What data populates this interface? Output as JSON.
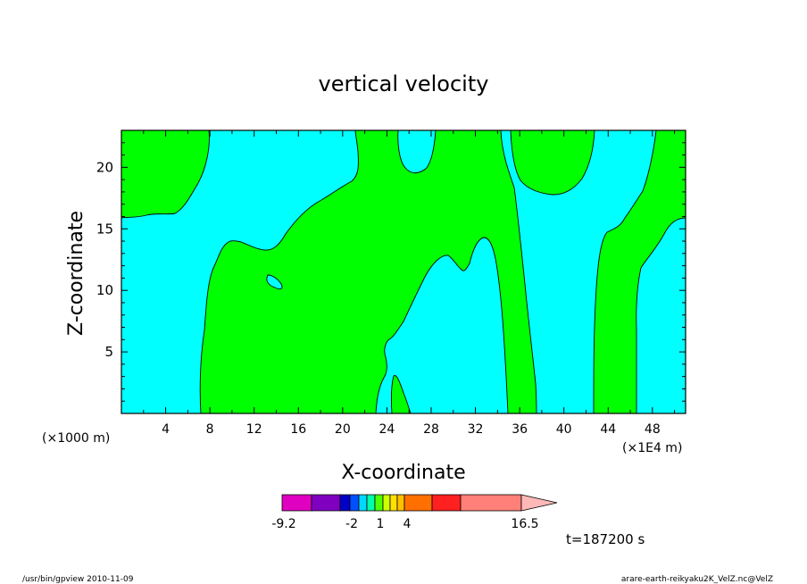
{
  "chart_data": {
    "type": "contour",
    "title": "vertical velocity",
    "xlabel": "X-coordinate",
    "ylabel": "Z-coordinate",
    "x_unit_label": "(×1000 m)",
    "x_unit_label_right": "(×1E4 m)",
    "xlim": [
      0,
      51
    ],
    "ylim": [
      0,
      23
    ],
    "x_ticks": [
      "4",
      "8",
      "12",
      "16",
      "20",
      "24",
      "28",
      "32",
      "36",
      "40",
      "44",
      "48"
    ],
    "y_ticks": [
      "5",
      "10",
      "15",
      "20"
    ],
    "regions": [
      {
        "level": "positive",
        "color": "#00ff00"
      },
      {
        "level": "negative",
        "color": "#00ffff"
      }
    ],
    "colorbar": {
      "tick_labels": [
        "-9.2",
        "-2",
        "1",
        "4",
        "16.5"
      ],
      "colors": [
        "#e000c0",
        "#8000c0",
        "#0000c8",
        "#0050ff",
        "#00d8ff",
        "#00ffaa",
        "#50ff00",
        "#d0ff00",
        "#ffe000",
        "#ffc000",
        "#ff7000",
        "#ff2020",
        "#ff8078",
        "#ffb8b8"
      ]
    },
    "time_label": "t=187200 s"
  },
  "footer": {
    "left": "/usr/bin/gpview  2010-11-09",
    "right": "arare-earth-reikyaku2K_VelZ.nc@VelZ"
  }
}
